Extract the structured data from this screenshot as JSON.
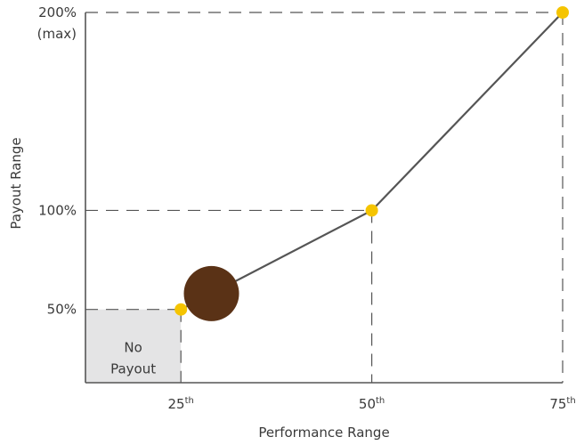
{
  "chart_data": {
    "type": "line",
    "title": "",
    "xlabel": "Performance Range",
    "ylabel": "Payout Range",
    "x_ticks": [
      {
        "value": 25,
        "base": "25",
        "sup": "th"
      },
      {
        "value": 50,
        "base": "50",
        "sup": "th"
      },
      {
        "value": 75,
        "base": "75",
        "sup": "th"
      }
    ],
    "y_ticks": [
      {
        "value": 50,
        "lines": [
          "50%"
        ]
      },
      {
        "value": 100,
        "lines": [
          "100%"
        ]
      },
      {
        "value": 200,
        "lines": [
          "200%",
          "(max)"
        ]
      }
    ],
    "xlim": [
      12.5,
      75
    ],
    "ylim": [
      13,
      200
    ],
    "series": [
      {
        "points": [
          [
            25,
            50
          ],
          [
            50,
            100
          ],
          [
            75,
            200
          ]
        ]
      }
    ],
    "marker": {
      "x": 29,
      "y": 58
    },
    "no_payout_region": {
      "x": [
        12.5,
        25
      ],
      "y": [
        13,
        50
      ],
      "label_lines": [
        "No",
        "Payout"
      ]
    },
    "grid": false,
    "colors": {
      "line": "#555555",
      "point": "#f5c400",
      "marker": "#5a3216",
      "region": "#e4e4e5",
      "guide": "#555555",
      "axis": "#555555",
      "text": "#3a3a3a"
    }
  }
}
